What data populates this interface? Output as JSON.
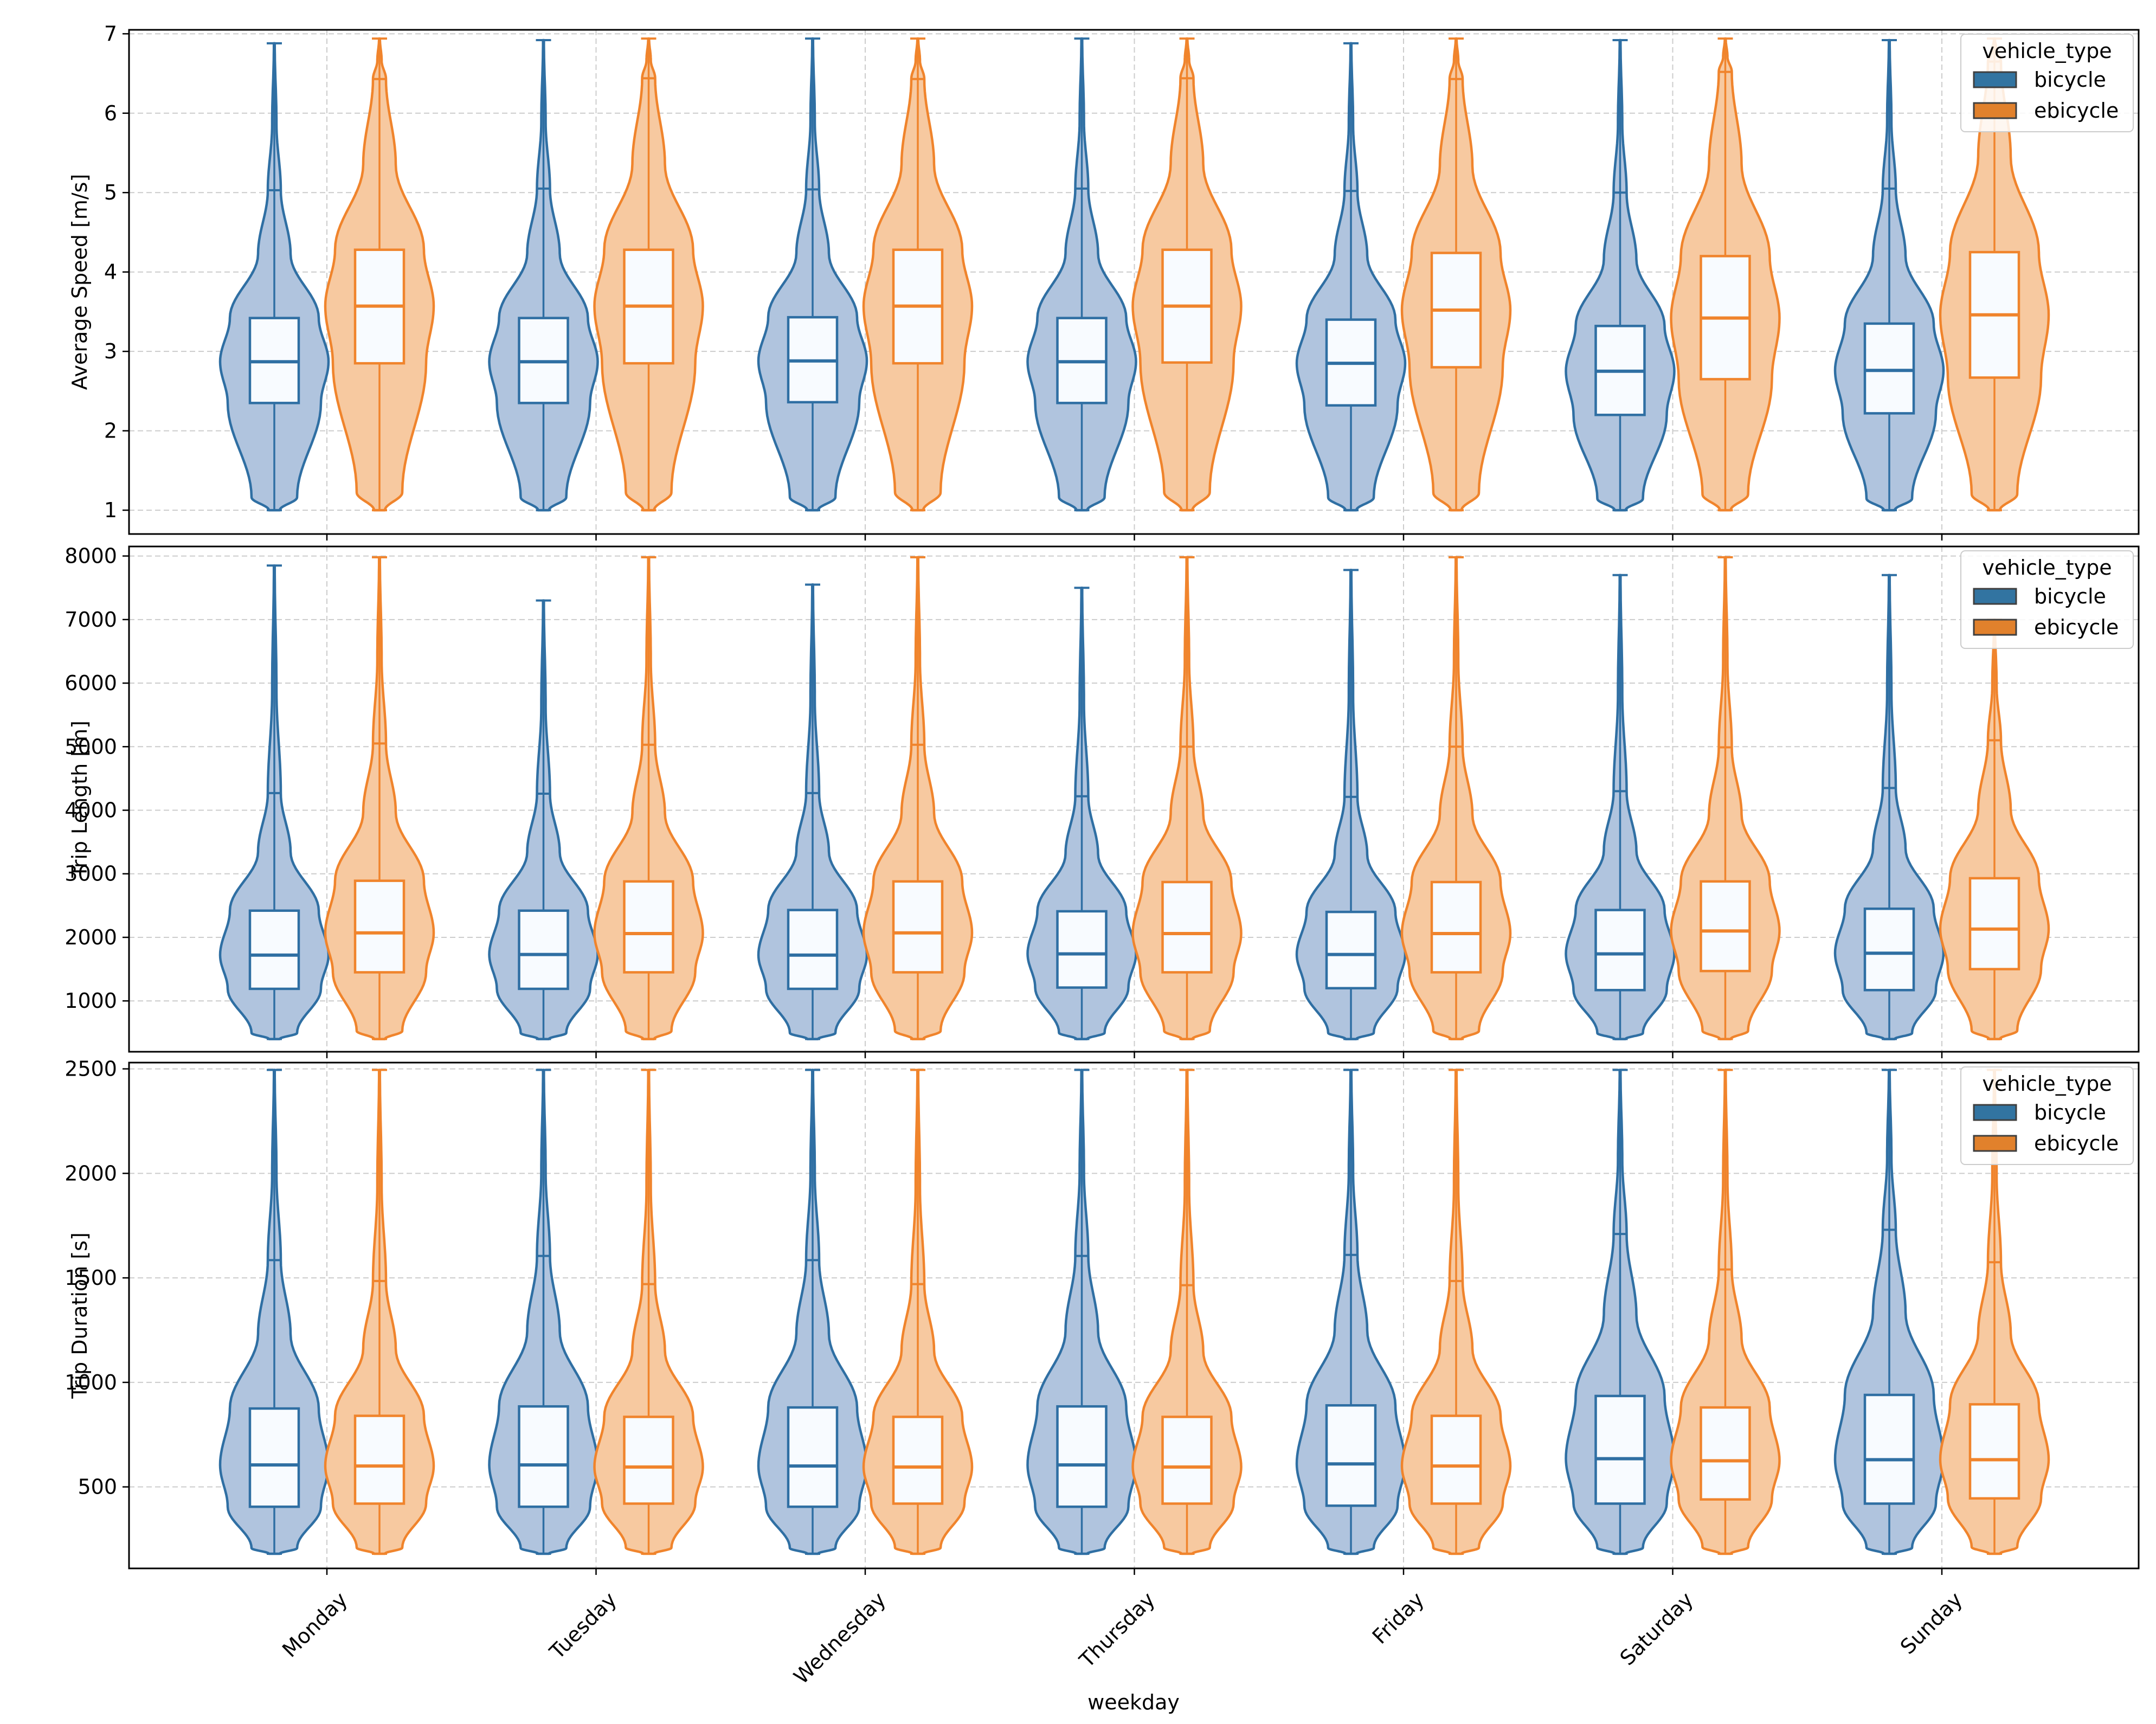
{
  "chart_data": {
    "type": "violin",
    "xlabel": "weekday",
    "categories": [
      "Monday",
      "Tuesday",
      "Wednesday",
      "Thursday",
      "Friday",
      "Saturday",
      "Sunday"
    ],
    "legend": {
      "title": "vehicle_type",
      "placement": "top-right",
      "entries": [
        "bicycle",
        "ebicycle"
      ]
    },
    "colors": {
      "bicycle_line": "#2f6fa3",
      "bicycle_fill": "#b0c4de",
      "ebicycle_line": "#f0842c",
      "ebicycle_fill": "#f7c9a0",
      "box_fill": "#f8fbff",
      "grid": "#cccccc"
    },
    "grid": true,
    "panels": [
      {
        "ylabel": "Average Speed [m/s]",
        "ylim": [
          0.7,
          7.05
        ],
        "yticks": [
          1,
          2,
          3,
          4,
          5,
          6,
          7
        ],
        "series": [
          {
            "name": "bicycle",
            "stats": [
              {
                "min": 1.0,
                "q1": 2.35,
                "median": 2.87,
                "q3": 3.42,
                "whisker_high": 5.03,
                "max": 6.88
              },
              {
                "min": 1.0,
                "q1": 2.35,
                "median": 2.87,
                "q3": 3.42,
                "whisker_high": 5.05,
                "max": 6.92
              },
              {
                "min": 1.0,
                "q1": 2.36,
                "median": 2.88,
                "q3": 3.43,
                "whisker_high": 5.04,
                "max": 6.94
              },
              {
                "min": 1.0,
                "q1": 2.35,
                "median": 2.87,
                "q3": 3.42,
                "whisker_high": 5.05,
                "max": 6.94
              },
              {
                "min": 1.0,
                "q1": 2.32,
                "median": 2.85,
                "q3": 3.4,
                "whisker_high": 5.02,
                "max": 6.88
              },
              {
                "min": 1.0,
                "q1": 2.2,
                "median": 2.75,
                "q3": 3.32,
                "whisker_high": 5.0,
                "max": 6.92
              },
              {
                "min": 1.0,
                "q1": 2.22,
                "median": 2.76,
                "q3": 3.35,
                "whisker_high": 5.05,
                "max": 6.92
              }
            ]
          },
          {
            "name": "ebicycle",
            "stats": [
              {
                "min": 1.0,
                "q1": 2.85,
                "median": 3.57,
                "q3": 4.28,
                "whisker_high": 6.43,
                "max": 6.94
              },
              {
                "min": 1.0,
                "q1": 2.85,
                "median": 3.57,
                "q3": 4.28,
                "whisker_high": 6.44,
                "max": 6.94
              },
              {
                "min": 1.0,
                "q1": 2.85,
                "median": 3.57,
                "q3": 4.28,
                "whisker_high": 6.43,
                "max": 6.94
              },
              {
                "min": 1.0,
                "q1": 2.86,
                "median": 3.57,
                "q3": 4.28,
                "whisker_high": 6.44,
                "max": 6.94
              },
              {
                "min": 1.0,
                "q1": 2.8,
                "median": 3.52,
                "q3": 4.24,
                "whisker_high": 6.43,
                "max": 6.94
              },
              {
                "min": 1.0,
                "q1": 2.65,
                "median": 3.42,
                "q3": 4.2,
                "whisker_high": 6.52,
                "max": 6.94
              },
              {
                "min": 1.0,
                "q1": 2.67,
                "median": 3.46,
                "q3": 4.25,
                "whisker_high": 6.65,
                "max": 6.94
              }
            ]
          }
        ]
      },
      {
        "ylabel": "Trip Length [m]",
        "ylim": [
          200,
          8150
        ],
        "yticks": [
          1000,
          2000,
          3000,
          4000,
          5000,
          6000,
          7000,
          8000
        ],
        "series": [
          {
            "name": "bicycle",
            "stats": [
              {
                "min": 400,
                "q1": 1190,
                "median": 1720,
                "q3": 2420,
                "whisker_high": 4270,
                "max": 7850
              },
              {
                "min": 400,
                "q1": 1190,
                "median": 1730,
                "q3": 2420,
                "whisker_high": 4260,
                "max": 7300
              },
              {
                "min": 400,
                "q1": 1190,
                "median": 1720,
                "q3": 2430,
                "whisker_high": 4270,
                "max": 7550
              },
              {
                "min": 400,
                "q1": 1210,
                "median": 1740,
                "q3": 2410,
                "whisker_high": 4220,
                "max": 7500
              },
              {
                "min": 400,
                "q1": 1200,
                "median": 1730,
                "q3": 2400,
                "whisker_high": 4210,
                "max": 7780
              },
              {
                "min": 400,
                "q1": 1170,
                "median": 1740,
                "q3": 2430,
                "whisker_high": 4300,
                "max": 7700
              },
              {
                "min": 400,
                "q1": 1170,
                "median": 1750,
                "q3": 2450,
                "whisker_high": 4350,
                "max": 7700
              }
            ]
          },
          {
            "name": "ebicycle",
            "stats": [
              {
                "min": 400,
                "q1": 1450,
                "median": 2070,
                "q3": 2890,
                "whisker_high": 5050,
                "max": 7980
              },
              {
                "min": 400,
                "q1": 1450,
                "median": 2060,
                "q3": 2880,
                "whisker_high": 5030,
                "max": 7980
              },
              {
                "min": 400,
                "q1": 1450,
                "median": 2070,
                "q3": 2880,
                "whisker_high": 5030,
                "max": 7980
              },
              {
                "min": 400,
                "q1": 1450,
                "median": 2060,
                "q3": 2870,
                "whisker_high": 5000,
                "max": 7980
              },
              {
                "min": 400,
                "q1": 1450,
                "median": 2060,
                "q3": 2870,
                "whisker_high": 5000,
                "max": 7980
              },
              {
                "min": 400,
                "q1": 1470,
                "median": 2100,
                "q3": 2880,
                "whisker_high": 4990,
                "max": 7980
              },
              {
                "min": 400,
                "q1": 1500,
                "median": 2130,
                "q3": 2930,
                "whisker_high": 5100,
                "max": 7000
              }
            ]
          }
        ]
      },
      {
        "ylabel": "Trip Duration [s]",
        "ylim": [
          110,
          2530
        ],
        "yticks": [
          500,
          1000,
          1500,
          2000,
          2500
        ],
        "series": [
          {
            "name": "bicycle",
            "stats": [
              {
                "min": 180,
                "q1": 405,
                "median": 605,
                "q3": 875,
                "whisker_high": 1585,
                "max": 2495
              },
              {
                "min": 180,
                "q1": 405,
                "median": 605,
                "q3": 885,
                "whisker_high": 1605,
                "max": 2495
              },
              {
                "min": 180,
                "q1": 405,
                "median": 600,
                "q3": 880,
                "whisker_high": 1585,
                "max": 2495
              },
              {
                "min": 180,
                "q1": 405,
                "median": 605,
                "q3": 885,
                "whisker_high": 1605,
                "max": 2495
              },
              {
                "min": 180,
                "q1": 410,
                "median": 610,
                "q3": 890,
                "whisker_high": 1610,
                "max": 2495
              },
              {
                "min": 180,
                "q1": 420,
                "median": 635,
                "q3": 935,
                "whisker_high": 1710,
                "max": 2495
              },
              {
                "min": 180,
                "q1": 420,
                "median": 630,
                "q3": 940,
                "whisker_high": 1730,
                "max": 2495
              }
            ]
          },
          {
            "name": "ebicycle",
            "stats": [
              {
                "min": 180,
                "q1": 420,
                "median": 600,
                "q3": 840,
                "whisker_high": 1485,
                "max": 2495
              },
              {
                "min": 180,
                "q1": 420,
                "median": 595,
                "q3": 835,
                "whisker_high": 1470,
                "max": 2495
              },
              {
                "min": 180,
                "q1": 420,
                "median": 595,
                "q3": 835,
                "whisker_high": 1470,
                "max": 2495
              },
              {
                "min": 180,
                "q1": 420,
                "median": 595,
                "q3": 835,
                "whisker_high": 1465,
                "max": 2495
              },
              {
                "min": 180,
                "q1": 420,
                "median": 600,
                "q3": 840,
                "whisker_high": 1485,
                "max": 2495
              },
              {
                "min": 180,
                "q1": 440,
                "median": 625,
                "q3": 880,
                "whisker_high": 1540,
                "max": 2495
              },
              {
                "min": 180,
                "q1": 445,
                "median": 630,
                "q3": 895,
                "whisker_high": 1575,
                "max": 2495
              }
            ]
          }
        ]
      }
    ]
  }
}
